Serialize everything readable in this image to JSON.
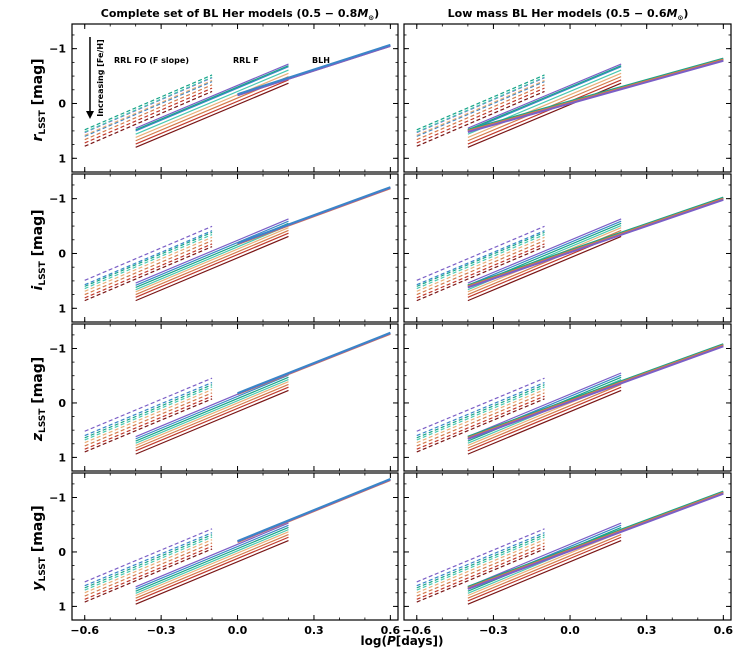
{
  "figure": {
    "col_titles": [
      {
        "text": "Complete set of BL Her models (0.5 − 0.8",
        "math": "M",
        "sub": "⊙",
        "close": ")"
      },
      {
        "text": "Low mass BL Her models (0.5 − 0.6",
        "math": "M",
        "sub": "⊙",
        "close": ")"
      }
    ],
    "row_labels": [
      {
        "main": "r",
        "sub": "LSST",
        "unit": " [mag]"
      },
      {
        "main": "i",
        "sub": "LSST",
        "unit": " [mag]"
      },
      {
        "main": "z",
        "sub": "LSST",
        "unit": " [mag]"
      },
      {
        "main": "y",
        "sub": "LSST",
        "unit": " [mag]"
      }
    ],
    "x_label": {
      "pre": "log(",
      "math": "P",
      "post": "[days])"
    },
    "annotations": {
      "rrl_fo": "RRL FO (F slope)",
      "rrl_f": "RRL F",
      "blh": "BLH",
      "increasing": "Increasing [Fe/H]"
    }
  },
  "chart_data": {
    "type": "line",
    "layout": "4 rows (r, i, z, y LSST bands) x 2 columns (complete set, low mass)",
    "xlabel": "log(P[days])",
    "xlim": [
      -0.65,
      0.63
    ],
    "ylim": [
      1.25,
      -1.45
    ],
    "x_ticks": [
      -0.6,
      -0.3,
      0.0,
      0.3,
      0.6
    ],
    "x_tick_labels": [
      "−0.6",
      "−0.3",
      "0.0",
      "0.3",
      "0.6"
    ],
    "y_ticks": [
      -1,
      0,
      1
    ],
    "y_tick_labels": [
      "−1",
      "0",
      "1"
    ],
    "metallicity_colors": [
      "#7b5fc7",
      "#3a86c8",
      "#17a589",
      "#48c9b0",
      "#e8b07a",
      "#d47a4a",
      "#c0392b",
      "#7b1616"
    ],
    "segments": {
      "rrl_fo": {
        "x": [
          -0.6,
          -0.1
        ],
        "style": "dashed",
        "width": 1.2
      },
      "rrl_f": {
        "x": [
          -0.4,
          0.2
        ],
        "style": "solid",
        "width": 1.2
      },
      "blh": {
        "x_complete": [
          0.0,
          0.6
        ],
        "x_lowmass": [
          -0.4,
          0.6
        ],
        "style": "solid",
        "width": 2.0
      }
    },
    "panels": [
      {
        "row": 0,
        "band": "r",
        "fo": {
          "start": [
            0.53,
            0.6,
            0.48,
            0.52,
            0.58,
            0.66,
            0.72,
            0.78
          ],
          "slope": -2.0
        },
        "f": {
          "start": [
            0.45,
            0.5,
            0.48,
            0.56,
            0.62,
            0.68,
            0.74,
            0.8
          ],
          "slope": -1.95
        },
        "blh_complete": {
          "start": [
            -0.15,
            -0.15,
            -0.17
          ],
          "slope": -1.5
        },
        "blh_lowmass": {
          "start": [
            0.48,
            0.5,
            0.52
          ],
          "slope": -1.3
        }
      },
      {
        "row": 1,
        "band": "i",
        "fo": {
          "start": [
            0.49,
            0.57,
            0.6,
            0.64,
            0.69,
            0.75,
            0.81,
            0.86
          ],
          "slope": -1.97
        },
        "f": {
          "start": [
            0.54,
            0.58,
            0.62,
            0.66,
            0.7,
            0.75,
            0.8,
            0.86
          ],
          "slope": -1.95
        },
        "blh_complete": {
          "start": [
            -0.17,
            -0.18,
            -0.19
          ],
          "slope": -1.7
        },
        "blh_lowmass": {
          "start": [
            0.58,
            0.6,
            0.62
          ],
          "slope": -1.6
        }
      },
      {
        "row": 2,
        "band": "z",
        "fo": {
          "start": [
            0.52,
            0.6,
            0.64,
            0.68,
            0.73,
            0.79,
            0.85,
            0.9
          ],
          "slope": -1.95
        },
        "f": {
          "start": [
            0.62,
            0.66,
            0.7,
            0.74,
            0.78,
            0.83,
            0.88,
            0.94
          ],
          "slope": -1.95
        },
        "blh_complete": {
          "start": [
            -0.16,
            -0.17,
            -0.18
          ],
          "slope": -1.85
        },
        "blh_lowmass": {
          "start": [
            0.62,
            0.64,
            0.66
          ],
          "slope": -1.7
        }
      },
      {
        "row": 3,
        "band": "y",
        "fo": {
          "start": [
            0.55,
            0.62,
            0.66,
            0.7,
            0.75,
            0.81,
            0.87,
            0.92
          ],
          "slope": -1.95
        },
        "f": {
          "start": [
            0.64,
            0.68,
            0.72,
            0.76,
            0.8,
            0.85,
            0.9,
            0.96
          ],
          "slope": -1.95
        },
        "blh_complete": {
          "start": [
            -0.18,
            -0.19,
            -0.2
          ],
          "slope": -1.9
        },
        "blh_lowmass": {
          "start": [
            0.64,
            0.66,
            0.68
          ],
          "slope": -1.75
        }
      }
    ]
  }
}
